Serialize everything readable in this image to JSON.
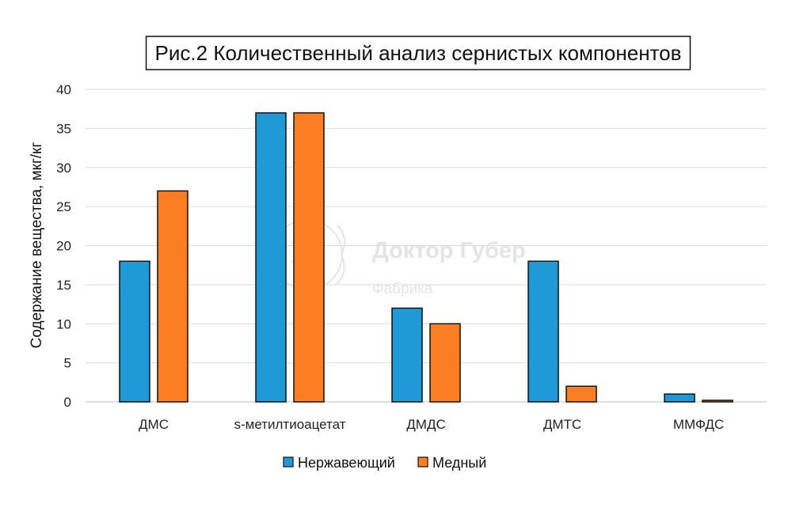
{
  "colors": {
    "series1": "#1f9ad6",
    "series2": "#fb7e23",
    "grid": "#d9d9d9",
    "watermark": "#e4e4e4"
  },
  "watermark": {
    "name": "Доктор Губер",
    "sub": "Фабрика"
  },
  "chart_data": {
    "type": "bar",
    "title": "Рис.2 Количественный анализ сернистых компонентов",
    "ylabel": "Содержание вещества, мкг/кг",
    "xlabel": "",
    "ylim": [
      0,
      40
    ],
    "yticks": [
      0,
      5,
      10,
      15,
      20,
      25,
      30,
      35,
      40
    ],
    "grid": true,
    "legend_position": "bottom",
    "categories": [
      "ДМС",
      "s-метилтиоацетат",
      "ДМДС",
      "ДМТС",
      "ММФДС"
    ],
    "series": [
      {
        "name": "Нержавеющий",
        "values": [
          18,
          37,
          12,
          18,
          1
        ]
      },
      {
        "name": "Медный",
        "values": [
          27,
          37,
          10,
          2,
          0.2
        ]
      }
    ]
  }
}
